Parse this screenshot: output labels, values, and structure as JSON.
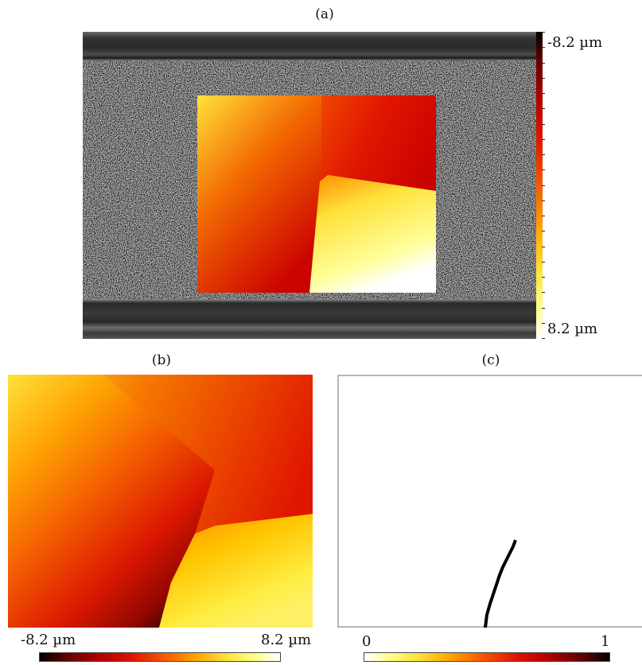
{
  "panels": {
    "a": {
      "letter": "(a)",
      "colorbar_top": "-8.2 µm",
      "colorbar_bottom": "8.2 µm"
    },
    "b": {
      "letter": "(b)",
      "colorbar_min": "-8.2 µm",
      "colorbar_max": "8.2 µm"
    },
    "c": {
      "letter": "(c)",
      "colorbar_min": "0",
      "colorbar_max": "1"
    }
  },
  "colors": {
    "hot_colormap": [
      "#000000",
      "#b20000",
      "#f45a00",
      "#ffe23a",
      "#ffffff"
    ]
  }
}
